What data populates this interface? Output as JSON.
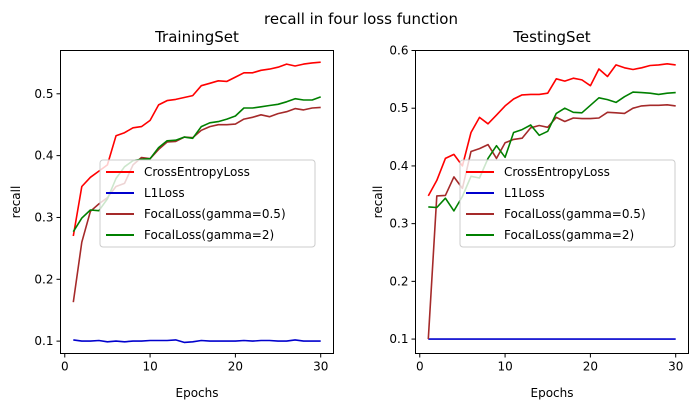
{
  "figure_title": "recall in four loss function",
  "colors": {
    "CrossEntropyLoss": "#ff0000",
    "L1Loss": "#0000cd",
    "FocalLoss(gamma=0.5)": "#a52a2a",
    "FocalLoss(gamma=2)": "#008000"
  },
  "chart_data": [
    {
      "type": "line",
      "title": "TrainingSet",
      "xlabel": "Epochs",
      "ylabel": "recall",
      "xlim": [
        -0.5,
        31.5
      ],
      "ylim": [
        0.08,
        0.57
      ],
      "xticks": [
        0,
        10,
        20,
        30
      ],
      "yticks": [
        0.1,
        0.2,
        0.3,
        0.4,
        0.5
      ],
      "grid": false,
      "legend_position": "center-right",
      "x": [
        1,
        2,
        3,
        4,
        5,
        6,
        7,
        8,
        9,
        10,
        11,
        12,
        13,
        14,
        15,
        16,
        17,
        18,
        19,
        20,
        21,
        22,
        23,
        24,
        25,
        26,
        27,
        28,
        29,
        30
      ],
      "series": [
        {
          "name": "CrossEntropyLoss",
          "values": [
            0.27,
            0.35,
            0.365,
            0.375,
            0.385,
            0.432,
            0.437,
            0.445,
            0.447,
            0.457,
            0.482,
            0.489,
            0.491,
            0.494,
            0.497,
            0.513,
            0.517,
            0.521,
            0.52,
            0.527,
            0.534,
            0.534,
            0.538,
            0.54,
            0.543,
            0.548,
            0.545,
            0.548,
            0.55,
            0.551
          ]
        },
        {
          "name": "L1Loss",
          "values": [
            0.102,
            0.1,
            0.1,
            0.101,
            0.099,
            0.1,
            0.099,
            0.1,
            0.1,
            0.101,
            0.101,
            0.101,
            0.102,
            0.098,
            0.099,
            0.101,
            0.1,
            0.1,
            0.1,
            0.1,
            0.101,
            0.1,
            0.101,
            0.101,
            0.1,
            0.1,
            0.102,
            0.1,
            0.1,
            0.1
          ]
        },
        {
          "name": "FocalLoss(gamma=0.5)",
          "values": [
            0.163,
            0.26,
            0.31,
            0.322,
            0.332,
            0.35,
            0.355,
            0.385,
            0.397,
            0.395,
            0.41,
            0.422,
            0.423,
            0.43,
            0.429,
            0.441,
            0.447,
            0.45,
            0.45,
            0.451,
            0.459,
            0.462,
            0.466,
            0.463,
            0.468,
            0.471,
            0.476,
            0.474,
            0.477,
            0.478
          ]
        },
        {
          "name": "FocalLoss(gamma=2)",
          "values": [
            0.277,
            0.299,
            0.312,
            0.311,
            0.33,
            0.363,
            0.382,
            0.392,
            0.394,
            0.395,
            0.413,
            0.424,
            0.425,
            0.43,
            0.428,
            0.447,
            0.453,
            0.455,
            0.459,
            0.464,
            0.477,
            0.477,
            0.479,
            0.481,
            0.483,
            0.487,
            0.492,
            0.49,
            0.49,
            0.495
          ]
        }
      ]
    },
    {
      "type": "line",
      "title": "TestingSet",
      "xlabel": "Epochs",
      "ylabel": "recall",
      "xlim": [
        -0.5,
        31.5
      ],
      "ylim": [
        0.075,
        0.6
      ],
      "xticks": [
        0,
        10,
        20,
        30
      ],
      "yticks": [
        0.1,
        0.2,
        0.3,
        0.4,
        0.5,
        0.6
      ],
      "grid": false,
      "legend_position": "center-right",
      "x": [
        1,
        2,
        3,
        4,
        5,
        6,
        7,
        8,
        9,
        10,
        11,
        12,
        13,
        14,
        15,
        16,
        17,
        18,
        19,
        20,
        21,
        22,
        23,
        24,
        25,
        26,
        27,
        28,
        29,
        30
      ],
      "series": [
        {
          "name": "CrossEntropyLoss",
          "values": [
            0.348,
            0.375,
            0.413,
            0.42,
            0.4,
            0.458,
            0.484,
            0.473,
            0.488,
            0.504,
            0.516,
            0.523,
            0.524,
            0.524,
            0.526,
            0.551,
            0.547,
            0.552,
            0.549,
            0.539,
            0.568,
            0.555,
            0.575,
            0.57,
            0.567,
            0.57,
            0.574,
            0.575,
            0.577,
            0.575
          ]
        },
        {
          "name": "L1Loss",
          "values": [
            0.1,
            0.1,
            0.1,
            0.1,
            0.1,
            0.1,
            0.1,
            0.1,
            0.1,
            0.1,
            0.1,
            0.1,
            0.1,
            0.1,
            0.1,
            0.1,
            0.1,
            0.1,
            0.1,
            0.1,
            0.1,
            0.1,
            0.1,
            0.1,
            0.1,
            0.1,
            0.1,
            0.1,
            0.1,
            0.1
          ]
        },
        {
          "name": "FocalLoss(gamma=0.5)",
          "values": [
            0.1,
            0.348,
            0.349,
            0.381,
            0.361,
            0.425,
            0.43,
            0.437,
            0.413,
            0.44,
            0.446,
            0.448,
            0.466,
            0.47,
            0.467,
            0.484,
            0.477,
            0.483,
            0.482,
            0.482,
            0.483,
            0.493,
            0.492,
            0.491,
            0.5,
            0.504,
            0.505,
            0.505,
            0.506,
            0.504
          ]
        },
        {
          "name": "FocalLoss(gamma=2)",
          "values": [
            0.329,
            0.328,
            0.344,
            0.322,
            0.347,
            0.382,
            0.379,
            0.413,
            0.435,
            0.415,
            0.458,
            0.463,
            0.471,
            0.453,
            0.46,
            0.491,
            0.5,
            0.493,
            0.492,
            0.505,
            0.518,
            0.515,
            0.51,
            0.52,
            0.528,
            0.527,
            0.526,
            0.524,
            0.526,
            0.527
          ]
        }
      ]
    }
  ]
}
